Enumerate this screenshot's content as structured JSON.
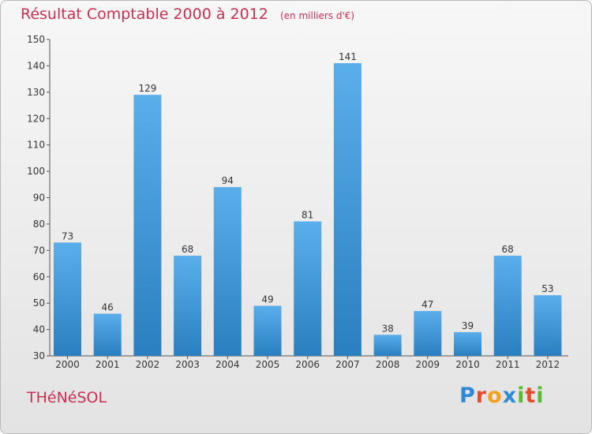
{
  "chart_data": {
    "type": "bar",
    "title": "Résultat Comptable 2000 à 2012",
    "subtitle": "(en milliers d'€)",
    "categories": [
      "2000",
      "2001",
      "2002",
      "2003",
      "2004",
      "2005",
      "2006",
      "2007",
      "2008",
      "2009",
      "2010",
      "2011",
      "2012"
    ],
    "values": [
      73,
      46,
      129,
      68,
      94,
      49,
      81,
      141,
      38,
      47,
      39,
      68,
      53
    ],
    "ylim": [
      30,
      150
    ],
    "yticks": [
      30,
      40,
      50,
      60,
      70,
      80,
      90,
      100,
      110,
      120,
      130,
      140,
      150
    ],
    "grid": false,
    "colors": {
      "bar_light": "#5aaeea",
      "bar_dark": "#2a7fc0",
      "title": "#cc2f52",
      "axis": "#555555"
    }
  },
  "footer": {
    "place": "THéNéSOL",
    "logo_letters": [
      {
        "ch": "P",
        "color": "#2f8ad6"
      },
      {
        "ch": "r",
        "color": "#e64b2e"
      },
      {
        "ch": "o",
        "color": "#f2a21f"
      },
      {
        "ch": "x",
        "color": "#2f8ad6"
      },
      {
        "ch": "i",
        "color": "#5cb835"
      },
      {
        "ch": "t",
        "color": "#e64b2e"
      },
      {
        "ch": "i",
        "color": "#5cb835"
      }
    ]
  }
}
